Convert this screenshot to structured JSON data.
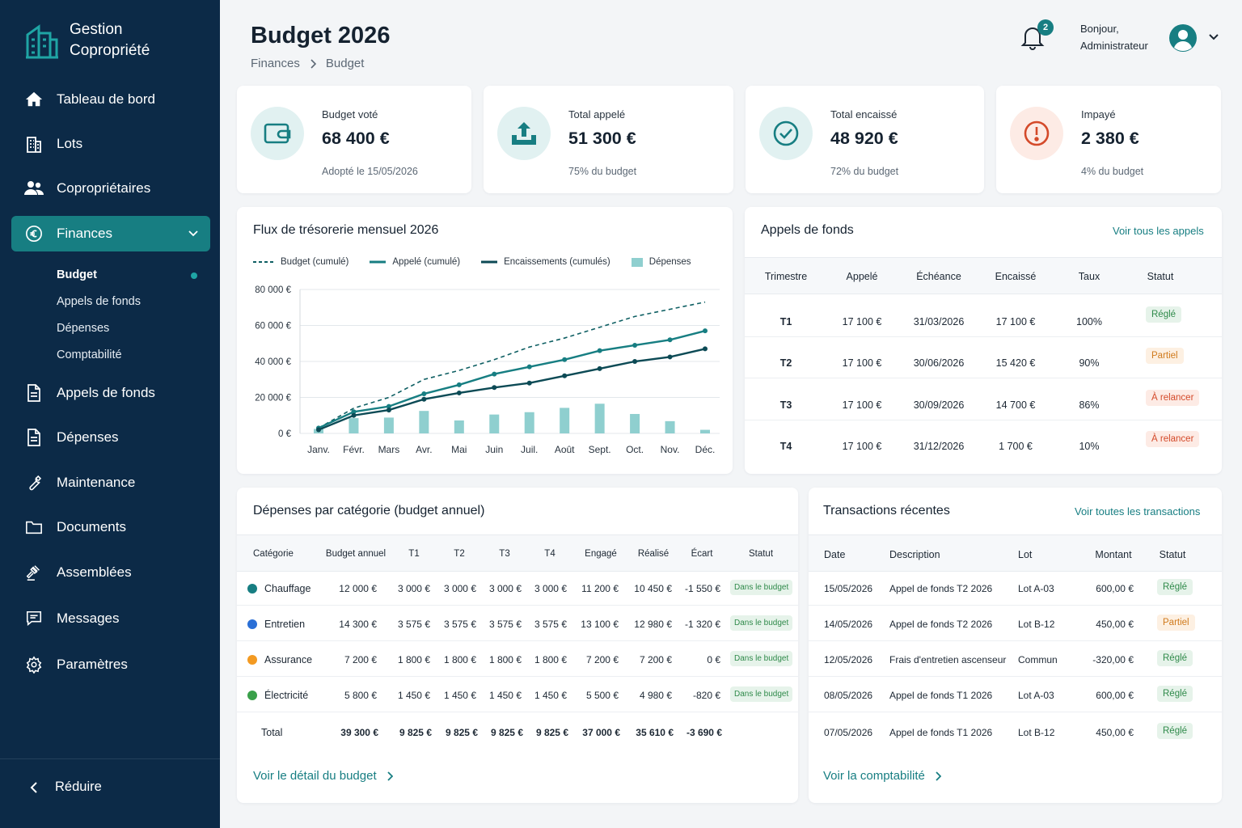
{
  "app": {
    "name_line1": "Gestion",
    "name_line2": "Copropriété"
  },
  "sidebar": {
    "items": [
      {
        "label": "Tableau de bord",
        "icon": "home-icon"
      },
      {
        "label": "Lots",
        "icon": "building-icon"
      },
      {
        "label": "Copropriétaires",
        "icon": "users-icon"
      },
      {
        "label": "Finances",
        "icon": "euro-icon",
        "active": true
      },
      {
        "label": "Appels de fonds",
        "icon": "document-icon"
      },
      {
        "label": "Dépenses",
        "icon": "document-icon"
      },
      {
        "label": "Maintenance",
        "icon": "wrench-icon"
      },
      {
        "label": "Documents",
        "icon": "folder-icon"
      },
      {
        "label": "Assemblées",
        "icon": "gavel-icon"
      },
      {
        "label": "Messages",
        "icon": "message-icon"
      },
      {
        "label": "Paramètres",
        "icon": "gear-icon"
      }
    ],
    "sub_items": [
      "Budget",
      "Appels de fonds",
      "Dépenses",
      "Comptabilité"
    ],
    "reduce_label": "Réduire"
  },
  "header": {
    "title": "Budget 2026",
    "breadcrumb": [
      "Finances",
      "Budget"
    ],
    "notifications": "2",
    "greeting_line1": "Bonjour,",
    "greeting_line2": "Administrateur"
  },
  "kpis": [
    {
      "label": "Budget voté",
      "value": "68 400 €",
      "sub": "Adopté le 15/05/2026",
      "icon": "wallet-icon"
    },
    {
      "label": "Total appelé",
      "value": "51 300 €",
      "sub": "75% du budget",
      "icon": "upload-icon"
    },
    {
      "label": "Total encaissé",
      "value": "48 920 €",
      "sub": "72% du budget",
      "icon": "check-circle-icon"
    },
    {
      "label": "Impayé",
      "value": "2 380 €",
      "sub": "4% du budget",
      "icon": "alert-icon"
    }
  ],
  "colors": {
    "sidebar": "#0c2a47",
    "accent": "#177e82",
    "dark_teal": "#0e5f63",
    "bar": "#8fcfcf",
    "danger": "#d44a2a"
  },
  "chart_data": {
    "type": "line",
    "title": "Flux de trésorerie mensuel 2026",
    "categories": [
      "Janv.",
      "Févr.",
      "Mars",
      "Avr.",
      "Mai",
      "Juin",
      "Juil.",
      "Août",
      "Sept.",
      "Oct.",
      "Nov.",
      "Déc."
    ],
    "y_ticks": [
      "80 000 €",
      "60 000 €",
      "40 000 €",
      "20 000 €",
      "0 €"
    ],
    "ylim": [
      0,
      80000
    ],
    "grid": true,
    "series": [
      {
        "name": "Budget (cumulé)",
        "style": "dashed",
        "values": [
          3000,
          14000,
          20000,
          30000,
          35000,
          41000,
          48000,
          53000,
          59000,
          65000,
          69000,
          73000
        ]
      },
      {
        "name": "Appelé (cumulé)",
        "style": "line",
        "values": [
          3000,
          12000,
          15000,
          22000,
          27000,
          33000,
          37000,
          41000,
          46000,
          49000,
          52000,
          57000
        ]
      },
      {
        "name": "Encaissements (cumulés)",
        "style": "line",
        "values": [
          2000,
          10000,
          13000,
          19000,
          22500,
          25500,
          28000,
          32000,
          36000,
          40000,
          42500,
          47000
        ]
      },
      {
        "name": "Dépenses",
        "style": "bar",
        "values": [
          2500,
          8500,
          8800,
          12500,
          7200,
          10500,
          11800,
          14200,
          16500,
          10800,
          6800,
          2000
        ]
      }
    ]
  },
  "appels": {
    "title": "Appels de fonds",
    "link": "Voir tous les appels",
    "headers": [
      "Trimestre",
      "Appelé",
      "Échéance",
      "Encaissé",
      "Taux",
      "Statut"
    ],
    "rows": [
      {
        "q": "T1",
        "appele": "17 100 €",
        "echeance": "31/03/2026",
        "encaisse": "17 100 €",
        "taux": "100%",
        "statut": "Réglé",
        "tone": "green"
      },
      {
        "q": "T2",
        "appele": "17 100 €",
        "echeance": "30/06/2026",
        "encaisse": "15 420 €",
        "taux": "90%",
        "statut": "Partiel",
        "tone": "orange"
      },
      {
        "q": "T3",
        "appele": "17 100 €",
        "echeance": "30/09/2026",
        "encaisse": "14 700 €",
        "taux": "86%",
        "statut": "À relancer",
        "tone": "red"
      },
      {
        "q": "T4",
        "appele": "17 100 €",
        "echeance": "31/12/2026",
        "encaisse": "1 700 €",
        "taux": "10%",
        "statut": "À relancer",
        "tone": "red"
      }
    ]
  },
  "depenses": {
    "title": "Dépenses par catégorie",
    "title_suffix": "(budget annuel)",
    "headers": [
      "Catégorie",
      "Budget annuel",
      "T1",
      "T2",
      "T3",
      "T4",
      "Engagé",
      "Réalisé",
      "Écart",
      "Statut"
    ],
    "rows": [
      {
        "cat": "Chauffage",
        "color": "#177e82",
        "budget": "12 000 €",
        "t1": "3 000 €",
        "t2": "3 000 €",
        "t3": "3 000 €",
        "t4": "3 000 €",
        "engage": "11 200 €",
        "realise": "10 450 €",
        "ecart": "-1 550 €",
        "statut": "Dans le budget"
      },
      {
        "cat": "Entretien",
        "color": "#2a6fd6",
        "budget": "14 300 €",
        "t1": "3 575 €",
        "t2": "3 575 €",
        "t3": "3 575 €",
        "t4": "3 575 €",
        "engage": "13 100 €",
        "realise": "12 980 €",
        "ecart": "-1 320 €",
        "statut": "Dans le budget"
      },
      {
        "cat": "Assurance",
        "color": "#f39a22",
        "budget": "7 200 €",
        "t1": "1 800 €",
        "t2": "1 800 €",
        "t3": "1 800 €",
        "t4": "1 800 €",
        "engage": "7 200 €",
        "realise": "7 200 €",
        "ecart": "0 €",
        "statut": "Dans le budget"
      },
      {
        "cat": "Électricité",
        "color": "#3aa04a",
        "budget": "5 800 €",
        "t1": "1 450 €",
        "t2": "1 450 €",
        "t3": "1 450 €",
        "t4": "1 450 €",
        "engage": "5 500 €",
        "realise": "4 980 €",
        "ecart": "-820 €",
        "statut": "Dans le budget"
      }
    ],
    "total": {
      "label": "Total",
      "budget": "39 300 €",
      "t1": "9 825 €",
      "t2": "9 825 €",
      "t3": "9 825 €",
      "t4": "9 825 €",
      "engage": "37 000 €",
      "realise": "35 610 €",
      "ecart": "-3 690 €"
    },
    "footer_link": "Voir le détail du budget"
  },
  "transactions": {
    "title": "Transactions récentes",
    "link": "Voir toutes les transactions",
    "headers": [
      "Date",
      "Description",
      "Lot",
      "Montant",
      "Statut"
    ],
    "rows": [
      {
        "date": "15/05/2026",
        "desc": "Appel de fonds T2 2026",
        "lot": "Lot A-03",
        "montant": "600,00 €",
        "statut": "Réglé",
        "tone": "green"
      },
      {
        "date": "14/05/2026",
        "desc": "Appel de fonds T2 2026",
        "lot": "Lot B-12",
        "montant": "450,00 €",
        "statut": "Partiel",
        "tone": "orange"
      },
      {
        "date": "12/05/2026",
        "desc": "Frais d'entretien ascenseur",
        "lot": "Commun",
        "montant": "-320,00 €",
        "statut": "Réglé",
        "tone": "green"
      },
      {
        "date": "08/05/2026",
        "desc": "Appel de fonds T1 2026",
        "lot": "Lot A-03",
        "montant": "600,00 €",
        "statut": "Réglé",
        "tone": "green"
      },
      {
        "date": "07/05/2026",
        "desc": "Appel de fonds T1 2026",
        "lot": "Lot B-12",
        "montant": "450,00 €",
        "statut": "Réglé",
        "tone": "green"
      }
    ],
    "footer_link": "Voir la comptabilité"
  }
}
